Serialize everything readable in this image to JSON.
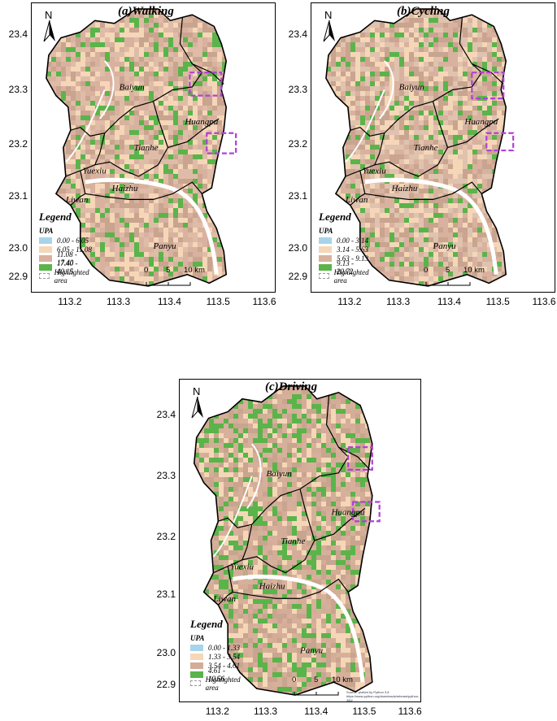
{
  "panels": [
    {
      "id": "a",
      "title": "(a)Walking",
      "legend_title": "Legend",
      "legend_sub": "UPA",
      "classes": [
        {
          "label": "0.00 - 6.05",
          "color": "#a8d4ea"
        },
        {
          "label": "6.05 - 11.08",
          "color": "#f5d7b8"
        },
        {
          "label": "11.08 - 17.40",
          "color": "#d9b19f"
        },
        {
          "label": "17.40 - 40.15",
          "color": "#5ab44a"
        }
      ],
      "highlight_label": "Highlighted area",
      "base_color": "#dfbca7",
      "green_share": 0.14
    },
    {
      "id": "b",
      "title": "(b)Cycling",
      "legend_title": "Legend",
      "legend_sub": "UPA",
      "classes": [
        {
          "label": "0.00 - 3.14",
          "color": "#a8d4ea"
        },
        {
          "label": "3.14 - 5.63",
          "color": "#f5d7b8"
        },
        {
          "label": "5.63 - 9.13",
          "color": "#d9b19f"
        },
        {
          "label": "9.13 - 20.72",
          "color": "#5ab44a"
        }
      ],
      "highlight_label": "Highlighted area",
      "base_color": "#dfc3ae",
      "green_share": 0.12
    },
    {
      "id": "c",
      "title": "(c)Driving",
      "legend_title": "Legend",
      "legend_sub": "UPA",
      "classes": [
        {
          "label": "0.00 - 1.33",
          "color": "#a8d4ea"
        },
        {
          "label": "1.33 - 3.54",
          "color": "#f5d7b8"
        },
        {
          "label": "3.54 - 4.61",
          "color": "#d3ad98"
        },
        {
          "label": "4.61 - 10.56",
          "color": "#5ab44a"
        }
      ],
      "highlight_label": "Highlighted area",
      "base_color": "#d7b09b",
      "green_share": 0.24,
      "source_lines": [
        "Source: plotted by Python 3.8",
        "https://www.python.org/downloads/release/python-380/"
      ]
    }
  ],
  "district_labels": [
    "Baiyun",
    "Huangpu",
    "Tianhe",
    "Yuexiu",
    "Haizhu",
    "Liwan",
    "Panyu"
  ],
  "lat_ticks": [
    "23.4",
    "23.3",
    "23.2",
    "23.1",
    "23.0",
    "22.9"
  ],
  "lon_ticks": [
    "113.2",
    "113.3",
    "113.4",
    "113.5",
    "113.6"
  ],
  "north_label": "N",
  "scale_labels": [
    "0",
    "5",
    "10 km"
  ],
  "highlight_color": "#b040d8"
}
